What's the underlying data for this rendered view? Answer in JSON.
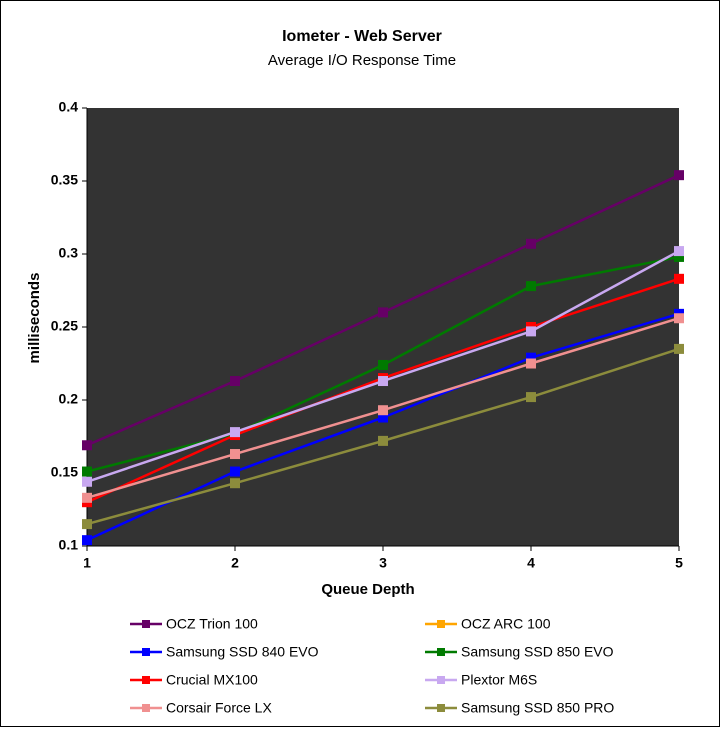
{
  "chart_data": {
    "type": "line",
    "title": "Iometer - Web Server",
    "subtitle": "Average I/O Response Time",
    "xlabel": "Queue Depth",
    "ylabel": "milliseconds",
    "x": [
      1,
      2,
      3,
      4,
      5
    ],
    "xlim": [
      1,
      5
    ],
    "xticks": [
      1,
      2,
      3,
      4,
      5
    ],
    "ylim": [
      0.1,
      0.4
    ],
    "yticks": [
      0.1,
      0.15,
      0.2,
      0.25,
      0.3,
      0.35,
      0.4
    ],
    "grid": false,
    "series": [
      {
        "name": "OCZ Trion 100",
        "color": "#660066",
        "values": [
          0.169,
          0.213,
          0.26,
          0.307,
          0.354
        ]
      },
      {
        "name": "OCZ ARC 100",
        "color": "#ffa500",
        "values": [
          null,
          null,
          null,
          null,
          null
        ]
      },
      {
        "name": "Samsung SSD 840 EVO",
        "color": "#0000ff",
        "values": [
          0.104,
          0.151,
          0.188,
          0.229,
          0.259
        ]
      },
      {
        "name": "Samsung SSD 850 EVO",
        "color": "#007a00",
        "values": [
          0.151,
          0.177,
          0.224,
          0.278,
          0.298
        ]
      },
      {
        "name": "Crucial MX100",
        "color": "#ff0000",
        "values": [
          0.13,
          0.176,
          0.215,
          0.25,
          0.283
        ]
      },
      {
        "name": "Plextor M6S",
        "color": "#c8a8f0",
        "values": [
          0.144,
          0.178,
          0.213,
          0.247,
          0.302
        ]
      },
      {
        "name": "Corsair Force LX",
        "color": "#f09090",
        "values": [
          0.133,
          0.163,
          0.193,
          0.225,
          0.256
        ]
      },
      {
        "name": "Samsung SSD 850 PRO",
        "color": "#8c8c3c",
        "values": [
          0.115,
          0.143,
          0.172,
          0.202,
          0.235
        ]
      }
    ]
  }
}
